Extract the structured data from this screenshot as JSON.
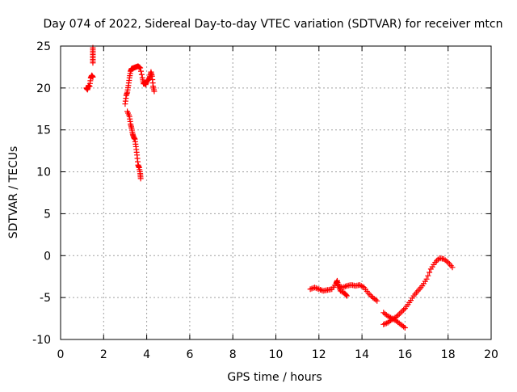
{
  "chart_data": {
    "type": "scatter",
    "title": "Day 074 of 2022, Sidereal Day-to-day VTEC variation (SDTVAR) for receiver mtcn",
    "xlabel": "GPS time / hours",
    "ylabel": "SDTVAR / TECUs",
    "xlim": [
      0,
      20
    ],
    "ylim": [
      -10,
      25
    ],
    "xticks": [
      "0",
      "2",
      "4",
      "6",
      "8",
      "10",
      "12",
      "14",
      "16",
      "18",
      "20"
    ],
    "yticks": [
      "-10",
      "-5",
      "0",
      "5",
      "10",
      "15",
      "20",
      "25"
    ],
    "grid": true,
    "marker": "+",
    "color": "#ff0000",
    "series": [
      {
        "name": "SDTVAR",
        "segments": [
          [
            [
              1.2,
              20.0
            ],
            [
              1.25,
              19.8
            ],
            [
              1.3,
              20.3
            ],
            [
              1.35,
              20.2
            ],
            [
              1.4,
              21.2
            ],
            [
              1.45,
              21.5
            ],
            [
              1.5,
              21.3
            ]
          ],
          [
            [
              1.5,
              23.0
            ],
            [
              1.5,
              23.6
            ],
            [
              1.5,
              24.2
            ],
            [
              1.5,
              24.8
            ]
          ],
          [
            [
              3.0,
              18.1
            ],
            [
              3.05,
              19.1
            ],
            [
              3.1,
              19.5
            ],
            [
              3.15,
              20.3
            ],
            [
              3.2,
              21.2
            ],
            [
              3.25,
              22.0
            ],
            [
              3.3,
              22.3
            ],
            [
              3.4,
              22.4
            ],
            [
              3.5,
              22.5
            ],
            [
              3.6,
              22.6
            ],
            [
              3.7,
              22.4
            ],
            [
              3.8,
              21.2
            ],
            [
              3.85,
              20.5
            ],
            [
              3.9,
              20.6
            ],
            [
              3.95,
              20.4
            ],
            [
              4.0,
              20.8
            ],
            [
              4.1,
              21.0
            ],
            [
              4.15,
              21.4
            ],
            [
              4.2,
              21.9
            ],
            [
              4.25,
              21.4
            ],
            [
              4.3,
              20.2
            ],
            [
              4.35,
              19.6
            ]
          ],
          [
            [
              3.1,
              17.2
            ],
            [
              3.2,
              16.6
            ],
            [
              3.25,
              15.7
            ],
            [
              3.3,
              15.2
            ],
            [
              3.35,
              14.5
            ],
            [
              3.4,
              14.1
            ],
            [
              3.45,
              13.9
            ],
            [
              3.5,
              13.0
            ],
            [
              3.55,
              12.0
            ],
            [
              3.6,
              10.8
            ],
            [
              3.65,
              10.5
            ],
            [
              3.7,
              9.8
            ],
            [
              3.72,
              9.2
            ]
          ],
          [
            [
              11.6,
              -4.0
            ],
            [
              11.8,
              -3.8
            ],
            [
              12.0,
              -4.0
            ],
            [
              12.2,
              -4.2
            ],
            [
              12.4,
              -4.1
            ],
            [
              12.6,
              -4.0
            ],
            [
              12.8,
              -3.3
            ],
            [
              12.85,
              -3.0
            ],
            [
              12.9,
              -3.6
            ],
            [
              13.0,
              -4.2
            ],
            [
              13.2,
              -4.5
            ],
            [
              13.3,
              -4.8
            ]
          ],
          [
            [
              12.9,
              -3.6
            ],
            [
              13.1,
              -3.8
            ],
            [
              13.3,
              -3.6
            ],
            [
              13.5,
              -3.5
            ],
            [
              13.7,
              -3.6
            ],
            [
              13.9,
              -3.5
            ],
            [
              14.1,
              -3.8
            ],
            [
              14.3,
              -4.5
            ],
            [
              14.5,
              -5.0
            ],
            [
              14.7,
              -5.4
            ]
          ],
          [
            [
              15.0,
              -6.8
            ],
            [
              15.2,
              -7.2
            ],
            [
              15.4,
              -7.5
            ],
            [
              15.6,
              -7.8
            ],
            [
              15.8,
              -8.2
            ],
            [
              16.0,
              -8.6
            ]
          ],
          [
            [
              15.0,
              -8.2
            ],
            [
              15.2,
              -8.0
            ],
            [
              15.4,
              -7.6
            ],
            [
              15.6,
              -7.3
            ],
            [
              15.8,
              -6.8
            ],
            [
              16.0,
              -6.3
            ],
            [
              16.2,
              -5.6
            ],
            [
              16.4,
              -4.8
            ],
            [
              16.6,
              -4.2
            ],
            [
              16.8,
              -3.6
            ],
            [
              17.0,
              -2.8
            ],
            [
              17.2,
              -1.6
            ],
            [
              17.4,
              -0.8
            ],
            [
              17.6,
              -0.3
            ],
            [
              17.8,
              -0.4
            ],
            [
              18.0,
              -0.8
            ],
            [
              18.2,
              -1.4
            ]
          ]
        ]
      }
    ]
  }
}
